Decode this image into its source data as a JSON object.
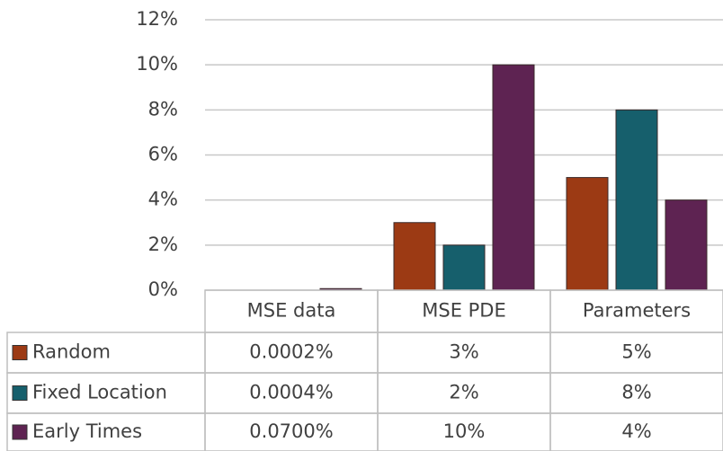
{
  "chart_data": {
    "type": "bar",
    "categories": [
      "MSE data",
      "MSE PDE",
      "Parameters"
    ],
    "series": [
      {
        "name": "Random",
        "color": "#9c3a14",
        "values": [
          0.0002,
          3,
          5
        ],
        "value_labels": [
          "0.0002%",
          "3%",
          "5%"
        ]
      },
      {
        "name": "Fixed Location",
        "color": "#165f6c",
        "values": [
          0.0004,
          2,
          8
        ],
        "value_labels": [
          "0.0004%",
          "2%",
          "8%"
        ]
      },
      {
        "name": "Early Times",
        "color": "#5e2352",
        "values": [
          0.07,
          10,
          4
        ],
        "value_labels": [
          "0.0700%",
          "10%",
          "4%"
        ]
      }
    ],
    "ylim": [
      0,
      12
    ],
    "yticks": [
      {
        "value": 0,
        "label": "0%"
      },
      {
        "value": 2,
        "label": "2%"
      },
      {
        "value": 4,
        "label": "4%"
      },
      {
        "value": 6,
        "label": "6%"
      },
      {
        "value": 8,
        "label": "8%"
      },
      {
        "value": 10,
        "label": "10%"
      },
      {
        "value": 12,
        "label": "12%"
      }
    ],
    "grid": true
  }
}
